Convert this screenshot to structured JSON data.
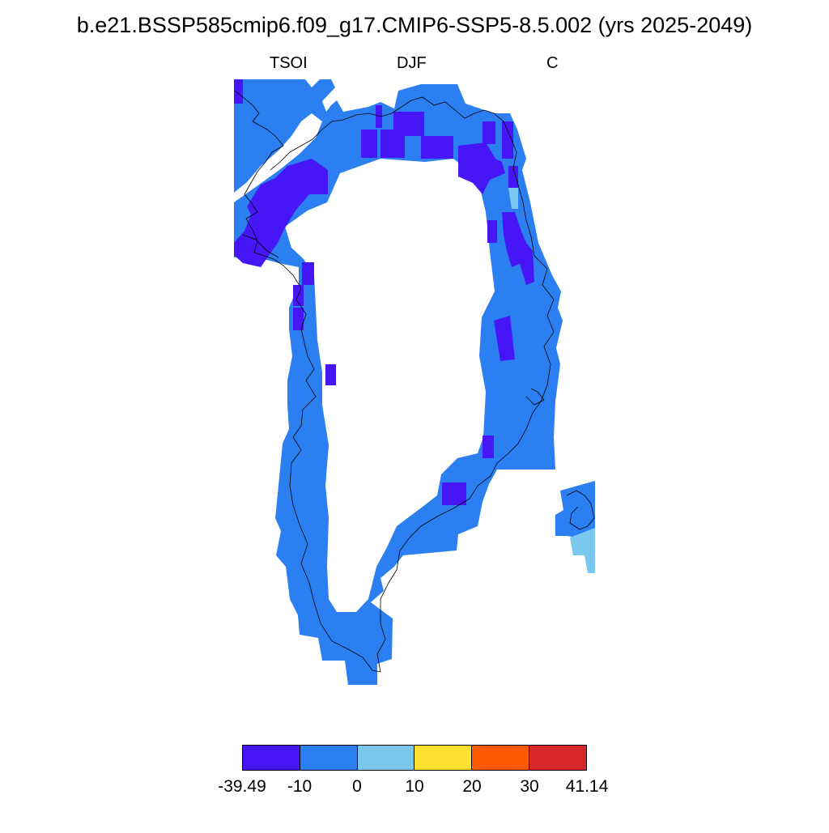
{
  "title": "b.e21.BSSP585cmip6.f09_g17.CMIP6-SSP5-8.5.002 (yrs 2025-2049)",
  "subtitle_left": "TSOI",
  "subtitle_center": "DJF",
  "subtitle_right": "C",
  "colorbar": {
    "colors": [
      "#4616f6",
      "#2b7ff0",
      "#7bc8ef",
      "#ffe033",
      "#ff5a00",
      "#d62828"
    ],
    "labels": [
      "-39.49",
      "-10",
      "0",
      "10",
      "20",
      "30",
      "41.14"
    ]
  },
  "map": {
    "region": "Greenland",
    "colors": {
      "main": "#2b7ff0",
      "cold": "#4616f6",
      "light": "#7bc8ef",
      "coast": "#000000"
    }
  }
}
